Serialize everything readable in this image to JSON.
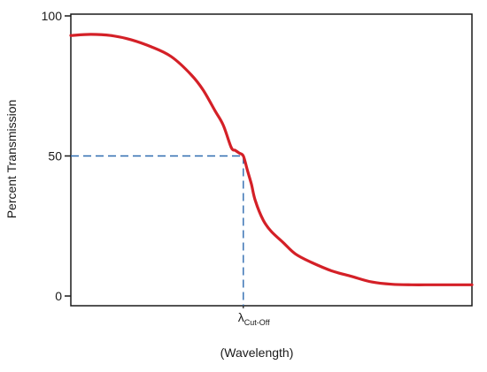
{
  "chart_data": {
    "type": "line",
    "title": "",
    "xlabel": "(Wavelength)",
    "ylabel": "Percent Transmission",
    "ylim": [
      0,
      100
    ],
    "xlim": [
      0,
      100
    ],
    "grid": false,
    "yticks": [
      {
        "value": 0,
        "label": "0"
      },
      {
        "value": 50,
        "label": "50"
      },
      {
        "value": 100,
        "label": "100"
      }
    ],
    "cutoff_marker": {
      "x": 43,
      "y": 50,
      "label_main": "λ",
      "label_sub": "Cut-Off"
    },
    "series": [
      {
        "color": "#d42027",
        "x": [
          0,
          5,
          10,
          15,
          20,
          25,
          30,
          33,
          36,
          38,
          40,
          41,
          42,
          43,
          44,
          45,
          46,
          48,
          50,
          53,
          56,
          60,
          65,
          70,
          75,
          80,
          85,
          90,
          95,
          100
        ],
        "y": [
          93,
          93.4,
          93,
          91.5,
          89,
          85.5,
          79,
          73.5,
          66,
          61,
          53,
          52,
          51,
          50,
          45,
          40,
          34,
          27,
          23,
          19,
          15,
          12,
          9,
          7,
          5,
          4.2,
          4,
          4,
          4,
          4
        ]
      }
    ],
    "colors": {
      "axis": "#1a1a1a",
      "guide": "#2e6bb0",
      "curve": "#d42027"
    }
  }
}
